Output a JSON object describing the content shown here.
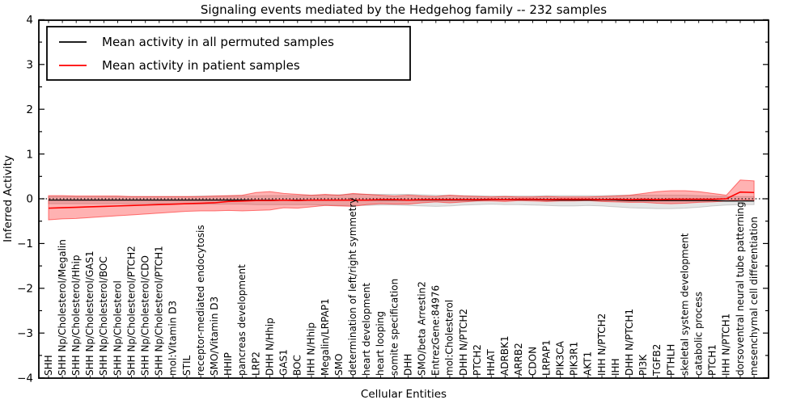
{
  "title": "Signaling events mediated by the Hedgehog family -- 232 samples",
  "axes": {
    "x_label": "Cellular Entities",
    "y_label": "Inferred Activity"
  },
  "legend": {
    "entries": [
      {
        "label": "Mean activity in all permuted samples",
        "color": "#000000"
      },
      {
        "label": "Mean activity in patient samples",
        "color": "#ff0000"
      }
    ]
  },
  "colors": {
    "permuted_line": "#000000",
    "patient_line": "#ff0000",
    "permuted_band_fill": "rgba(125,125,125,0.20)",
    "permuted_band_edge": "rgba(110,110,110,0.30)",
    "patient_band_fill": "rgba(255,0,0,0.30)",
    "patient_band_edge": "rgba(255,0,0,0.50)",
    "zero_line": "#000000",
    "frame": "#000000"
  },
  "chart_data": {
    "type": "line",
    "title": "Signaling events mediated by the Hedgehog family -- 232 samples",
    "xlabel": "Cellular Entities",
    "ylabel": "Inferred Activity",
    "ylim": [
      -4,
      4
    ],
    "yticks": [
      -4,
      -3,
      -2,
      -1,
      0,
      1,
      2,
      3,
      4
    ],
    "minor_ytick_step": 0.5,
    "grid": false,
    "legend_position": "upper left",
    "zero_reference_line": 0,
    "x_labels_rotation": 90,
    "categories": [
      "SHH",
      "SHH Np/Cholesterol/Megalin",
      "SHH Np/Cholesterol/Hhip",
      "SHH Np/Cholesterol/GAS1",
      "SHH Np/Cholesterol/BOC",
      "SHH Np/Cholesterol",
      "SHH Np/Cholesterol/PTCH2",
      "SHH Np/Cholesterol/CDO",
      "SHH Np/Cholesterol/PTCH1",
      "mol:Vitamin D3",
      "STIL",
      "receptor-mediated endocytosis",
      "SMO/Vitamin D3",
      "HHIP",
      "pancreas development",
      "LRP2",
      "DHH N/Hhip",
      "GAS1",
      "BOC",
      "IHH N/Hhip",
      "Megalin/LRPAP1",
      "SMO",
      "determination of left/right symmetry",
      "heart development",
      "heart looping",
      "somite specification",
      "DHH",
      "SMO/beta Arrestin2",
      "EntrezGene:84976",
      "mol:Cholesterol",
      "DHH N/PTCH2",
      "PTCH2",
      "HHAT",
      "ADRBK1",
      "ARRB2",
      "CDON",
      "LRPAP1",
      "PIK3CA",
      "PIK3R1",
      "AKT1",
      "IHH N/PTCH2",
      "IHH",
      "DHH N/PTCH1",
      "PI3K",
      "TGFB2",
      "PTHLH",
      "skeletal system development",
      "catabolic process",
      "PTCH1",
      "IHH N/PTCH1",
      "dorsoventral neural tube patterning",
      "mesenchymal cell differentiation"
    ],
    "series": [
      {
        "name": "Mean activity in all permuted samples",
        "color": "#000000",
        "values": [
          -0.03,
          -0.03,
          -0.03,
          -0.03,
          -0.03,
          -0.03,
          -0.03,
          -0.03,
          -0.03,
          -0.03,
          -0.03,
          -0.03,
          -0.03,
          -0.03,
          -0.03,
          -0.03,
          -0.03,
          -0.03,
          -0.03,
          -0.03,
          -0.03,
          -0.03,
          -0.03,
          -0.03,
          -0.03,
          -0.03,
          -0.03,
          -0.03,
          -0.03,
          -0.03,
          -0.03,
          -0.03,
          -0.02,
          -0.02,
          -0.02,
          -0.02,
          -0.03,
          -0.03,
          -0.03,
          -0.03,
          -0.03,
          -0.03,
          -0.04,
          -0.04,
          -0.04,
          -0.04,
          -0.04,
          -0.04,
          -0.04,
          -0.05,
          -0.05,
          -0.05
        ]
      },
      {
        "name": "Mean activity in patient samples",
        "color": "#ff0000",
        "values": [
          -0.21,
          -0.2,
          -0.19,
          -0.18,
          -0.17,
          -0.16,
          -0.15,
          -0.14,
          -0.13,
          -0.12,
          -0.11,
          -0.1,
          -0.09,
          -0.06,
          -0.05,
          -0.04,
          -0.04,
          -0.03,
          -0.04,
          -0.03,
          -0.03,
          -0.03,
          -0.03,
          -0.03,
          -0.02,
          -0.02,
          -0.03,
          -0.02,
          -0.02,
          -0.02,
          -0.02,
          -0.02,
          -0.01,
          -0.02,
          -0.01,
          -0.01,
          -0.02,
          -0.01,
          -0.01,
          -0.01,
          -0.02,
          -0.01,
          -0.02,
          -0.01,
          -0.02,
          -0.01,
          -0.01,
          -0.01,
          -0.01,
          0.0,
          0.15,
          0.14
        ]
      }
    ],
    "bands": [
      {
        "name": "Permuted samples range",
        "high": [
          0.05,
          0.05,
          0.05,
          0.05,
          0.05,
          0.05,
          0.05,
          0.05,
          0.05,
          0.05,
          0.05,
          0.06,
          0.06,
          0.06,
          0.06,
          0.06,
          0.07,
          0.07,
          0.07,
          0.08,
          0.08,
          0.09,
          0.1,
          0.1,
          0.1,
          0.1,
          0.1,
          0.09,
          0.08,
          0.08,
          0.07,
          0.07,
          0.06,
          0.06,
          0.06,
          0.06,
          0.07,
          0.07,
          0.07,
          0.07,
          0.07,
          0.08,
          0.08,
          0.08,
          0.08,
          0.08,
          0.08,
          0.07,
          0.06,
          0.05,
          0.05,
          0.05
        ],
        "low": [
          -0.11,
          -0.11,
          -0.11,
          -0.11,
          -0.11,
          -0.11,
          -0.11,
          -0.11,
          -0.11,
          -0.11,
          -0.12,
          -0.12,
          -0.12,
          -0.12,
          -0.12,
          -0.13,
          -0.13,
          -0.13,
          -0.13,
          -0.13,
          -0.14,
          -0.15,
          -0.15,
          -0.15,
          -0.14,
          -0.14,
          -0.15,
          -0.16,
          -0.17,
          -0.16,
          -0.14,
          -0.13,
          -0.12,
          -0.13,
          -0.13,
          -0.14,
          -0.15,
          -0.16,
          -0.16,
          -0.15,
          -0.16,
          -0.18,
          -0.2,
          -0.21,
          -0.22,
          -0.22,
          -0.21,
          -0.19,
          -0.16,
          -0.14,
          -0.13,
          -0.13
        ]
      },
      {
        "name": "Patient samples range",
        "high": [
          0.07,
          0.07,
          0.06,
          0.06,
          0.06,
          0.06,
          0.05,
          0.05,
          0.05,
          0.05,
          0.05,
          0.05,
          0.06,
          0.07,
          0.08,
          0.14,
          0.16,
          0.12,
          0.1,
          0.08,
          0.1,
          0.08,
          0.12,
          0.1,
          0.08,
          0.06,
          0.08,
          0.06,
          0.05,
          0.08,
          0.06,
          0.05,
          0.04,
          0.05,
          0.04,
          0.04,
          0.05,
          0.04,
          0.04,
          0.04,
          0.05,
          0.06,
          0.08,
          0.12,
          0.16,
          0.18,
          0.18,
          0.16,
          0.12,
          0.08,
          0.42,
          0.4
        ],
        "low": [
          -0.47,
          -0.45,
          -0.44,
          -0.42,
          -0.4,
          -0.38,
          -0.36,
          -0.34,
          -0.32,
          -0.3,
          -0.28,
          -0.27,
          -0.27,
          -0.26,
          -0.27,
          -0.26,
          -0.25,
          -0.2,
          -0.21,
          -0.18,
          -0.15,
          -0.16,
          -0.17,
          -0.13,
          -0.11,
          -0.12,
          -0.12,
          -0.09,
          -0.07,
          -0.09,
          -0.07,
          -0.05,
          -0.05,
          -0.06,
          -0.04,
          -0.05,
          -0.06,
          -0.05,
          -0.05,
          -0.04,
          -0.06,
          -0.07,
          -0.08,
          -0.08,
          -0.1,
          -0.11,
          -0.1,
          -0.08,
          -0.07,
          -0.05,
          -0.02,
          -0.04
        ]
      }
    ]
  }
}
